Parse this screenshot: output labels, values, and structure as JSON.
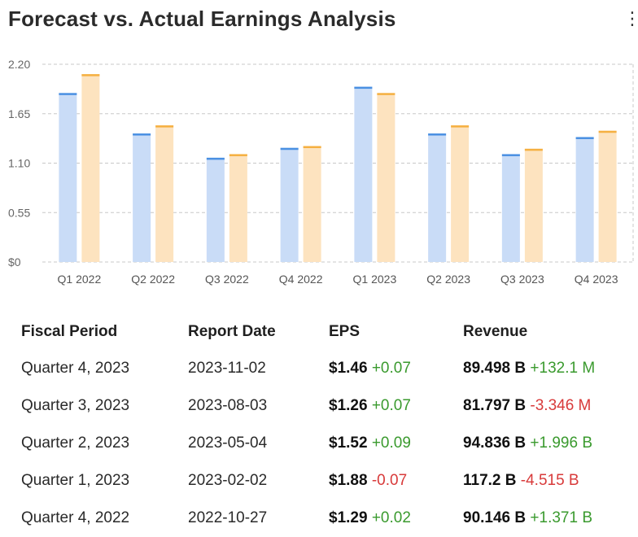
{
  "title": "Forecast vs. Actual Earnings Analysis",
  "menu_icon": "more-vertical-icon",
  "colors": {
    "forecast_fill": "#c9dcf7",
    "forecast_cap": "#4a90e2",
    "actual_fill": "#fde3bf",
    "actual_cap": "#f5b041",
    "grid": "#c8c8c8",
    "positive": "#3a9a2e",
    "negative": "#d83a3a"
  },
  "chart_data": {
    "type": "bar",
    "categories": [
      "Q1 2022",
      "Q2 2022",
      "Q3 2022",
      "Q4 2022",
      "Q1 2023",
      "Q2 2023",
      "Q3 2023",
      "Q4 2023"
    ],
    "series": [
      {
        "values": [
          1.88,
          1.43,
          1.16,
          1.27,
          1.95,
          1.43,
          1.2,
          1.39
        ]
      },
      {
        "values": [
          2.09,
          1.52,
          1.2,
          1.29,
          1.88,
          1.52,
          1.26,
          1.46
        ]
      }
    ],
    "yticks": [
      "$0",
      "0.55",
      "1.10",
      "1.65",
      "2.20"
    ],
    "ylim": [
      0,
      2.2
    ],
    "grid": true
  },
  "table": {
    "headers": [
      "Fiscal Period",
      "Report Date",
      "EPS",
      "Revenue"
    ],
    "rows": [
      {
        "period": "Quarter 4, 2023",
        "date": "2023-11-02",
        "eps": "$1.46",
        "eps_change": "+0.07",
        "eps_dir": "pos",
        "revenue": "89.498 B",
        "revenue_change": "+132.1 M",
        "revenue_dir": "pos"
      },
      {
        "period": "Quarter 3, 2023",
        "date": "2023-08-03",
        "eps": "$1.26",
        "eps_change": "+0.07",
        "eps_dir": "pos",
        "revenue": "81.797 B",
        "revenue_change": "-3.346 M",
        "revenue_dir": "neg"
      },
      {
        "period": "Quarter 2, 2023",
        "date": "2023-05-04",
        "eps": "$1.52",
        "eps_change": "+0.09",
        "eps_dir": "pos",
        "revenue": "94.836 B",
        "revenue_change": "+1.996 B",
        "revenue_dir": "pos"
      },
      {
        "period": "Quarter 1, 2023",
        "date": "2023-02-02",
        "eps": "$1.88",
        "eps_change": "-0.07",
        "eps_dir": "neg",
        "revenue": "117.2 B",
        "revenue_change": "-4.515 B",
        "revenue_dir": "neg"
      },
      {
        "period": "Quarter 4, 2022",
        "date": "2022-10-27",
        "eps": "$1.29",
        "eps_change": "+0.02",
        "eps_dir": "pos",
        "revenue": "90.146 B",
        "revenue_change": "+1.371 B",
        "revenue_dir": "pos"
      }
    ]
  }
}
